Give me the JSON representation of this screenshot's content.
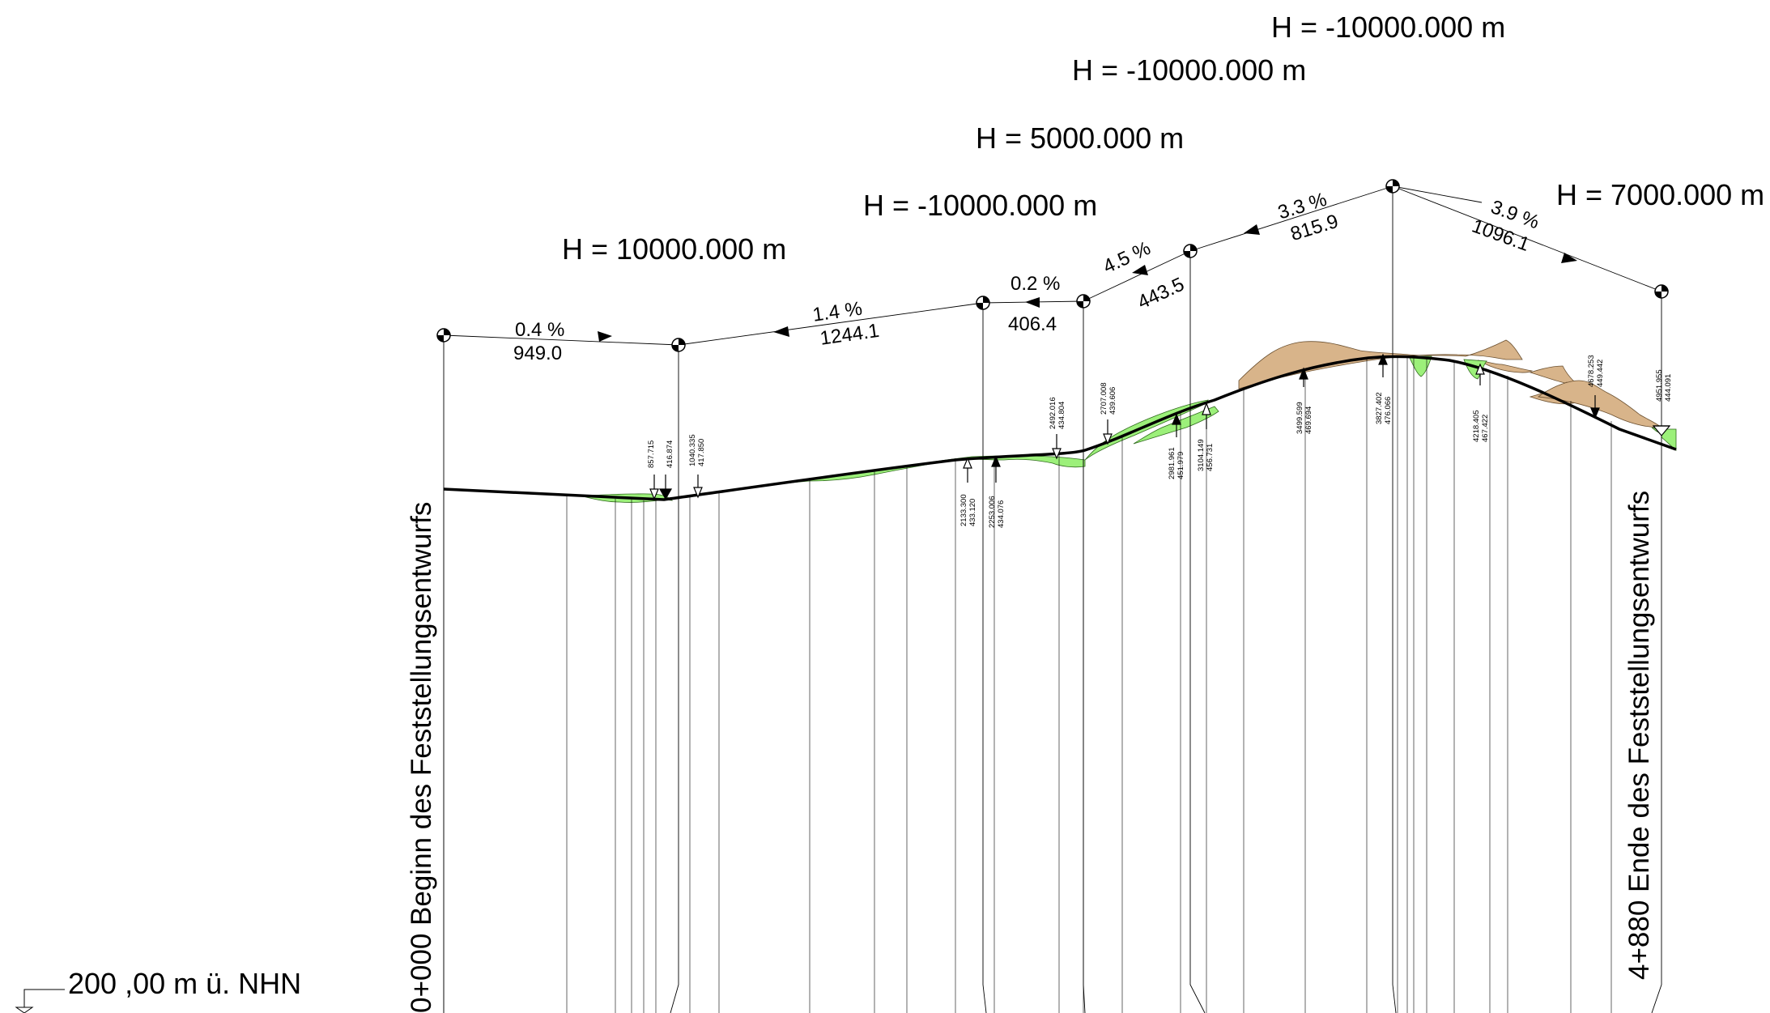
{
  "drawing_title": "",
  "start_label": "0+000 Beginn des Feststellungsentwurfs",
  "end_label": "4+880 Ende des Feststellungsentwurfs",
  "datum_label": "200 ,00 m ü. NHN",
  "colors": {
    "fill_cut": "#d8b48a",
    "fill_fill": "#9cf07a",
    "line": "#000000"
  },
  "vertical_curve_radii": [
    "H = 10000.000 m",
    "H = -10000.000 m",
    "H = 5000.000 m",
    "H = -10000.000 m",
    "H = -10000.000 m",
    "H = 7000.000 m"
  ],
  "grades": [
    {
      "percent": "0.4 %",
      "length": "949.0"
    },
    {
      "percent": "1.4 %",
      "length": "1244.1"
    },
    {
      "percent": "0.2 %",
      "length": "406.4"
    },
    {
      "percent": "4.5 %",
      "length": "443.5"
    },
    {
      "percent": "3.3 %",
      "length": "815.9"
    },
    {
      "percent": "3.9 %",
      "length": "1096.1"
    }
  ],
  "tangent_points": [
    {
      "station": "857.715",
      "elevation": "416.874"
    },
    {
      "station": "1040.335",
      "elevation": "417.850"
    },
    {
      "station": "2133.300",
      "elevation": "433.120"
    },
    {
      "station": "2253.006",
      "elevation": "434.076"
    },
    {
      "station": "2492.016",
      "elevation": "434.804"
    },
    {
      "station": "2707.008",
      "elevation": "439.606"
    },
    {
      "station": "2981.961",
      "elevation": "451.979"
    },
    {
      "station": "3104.149",
      "elevation": "456.731"
    },
    {
      "station": "3499.599",
      "elevation": "469.694"
    },
    {
      "station": "3827.402",
      "elevation": "476.066"
    },
    {
      "station": "4218.405",
      "elevation": "467.422"
    },
    {
      "station": "4678.253",
      "elevation": "449.442"
    },
    {
      "station": "4951.955",
      "elevation": "444.091"
    }
  ]
}
